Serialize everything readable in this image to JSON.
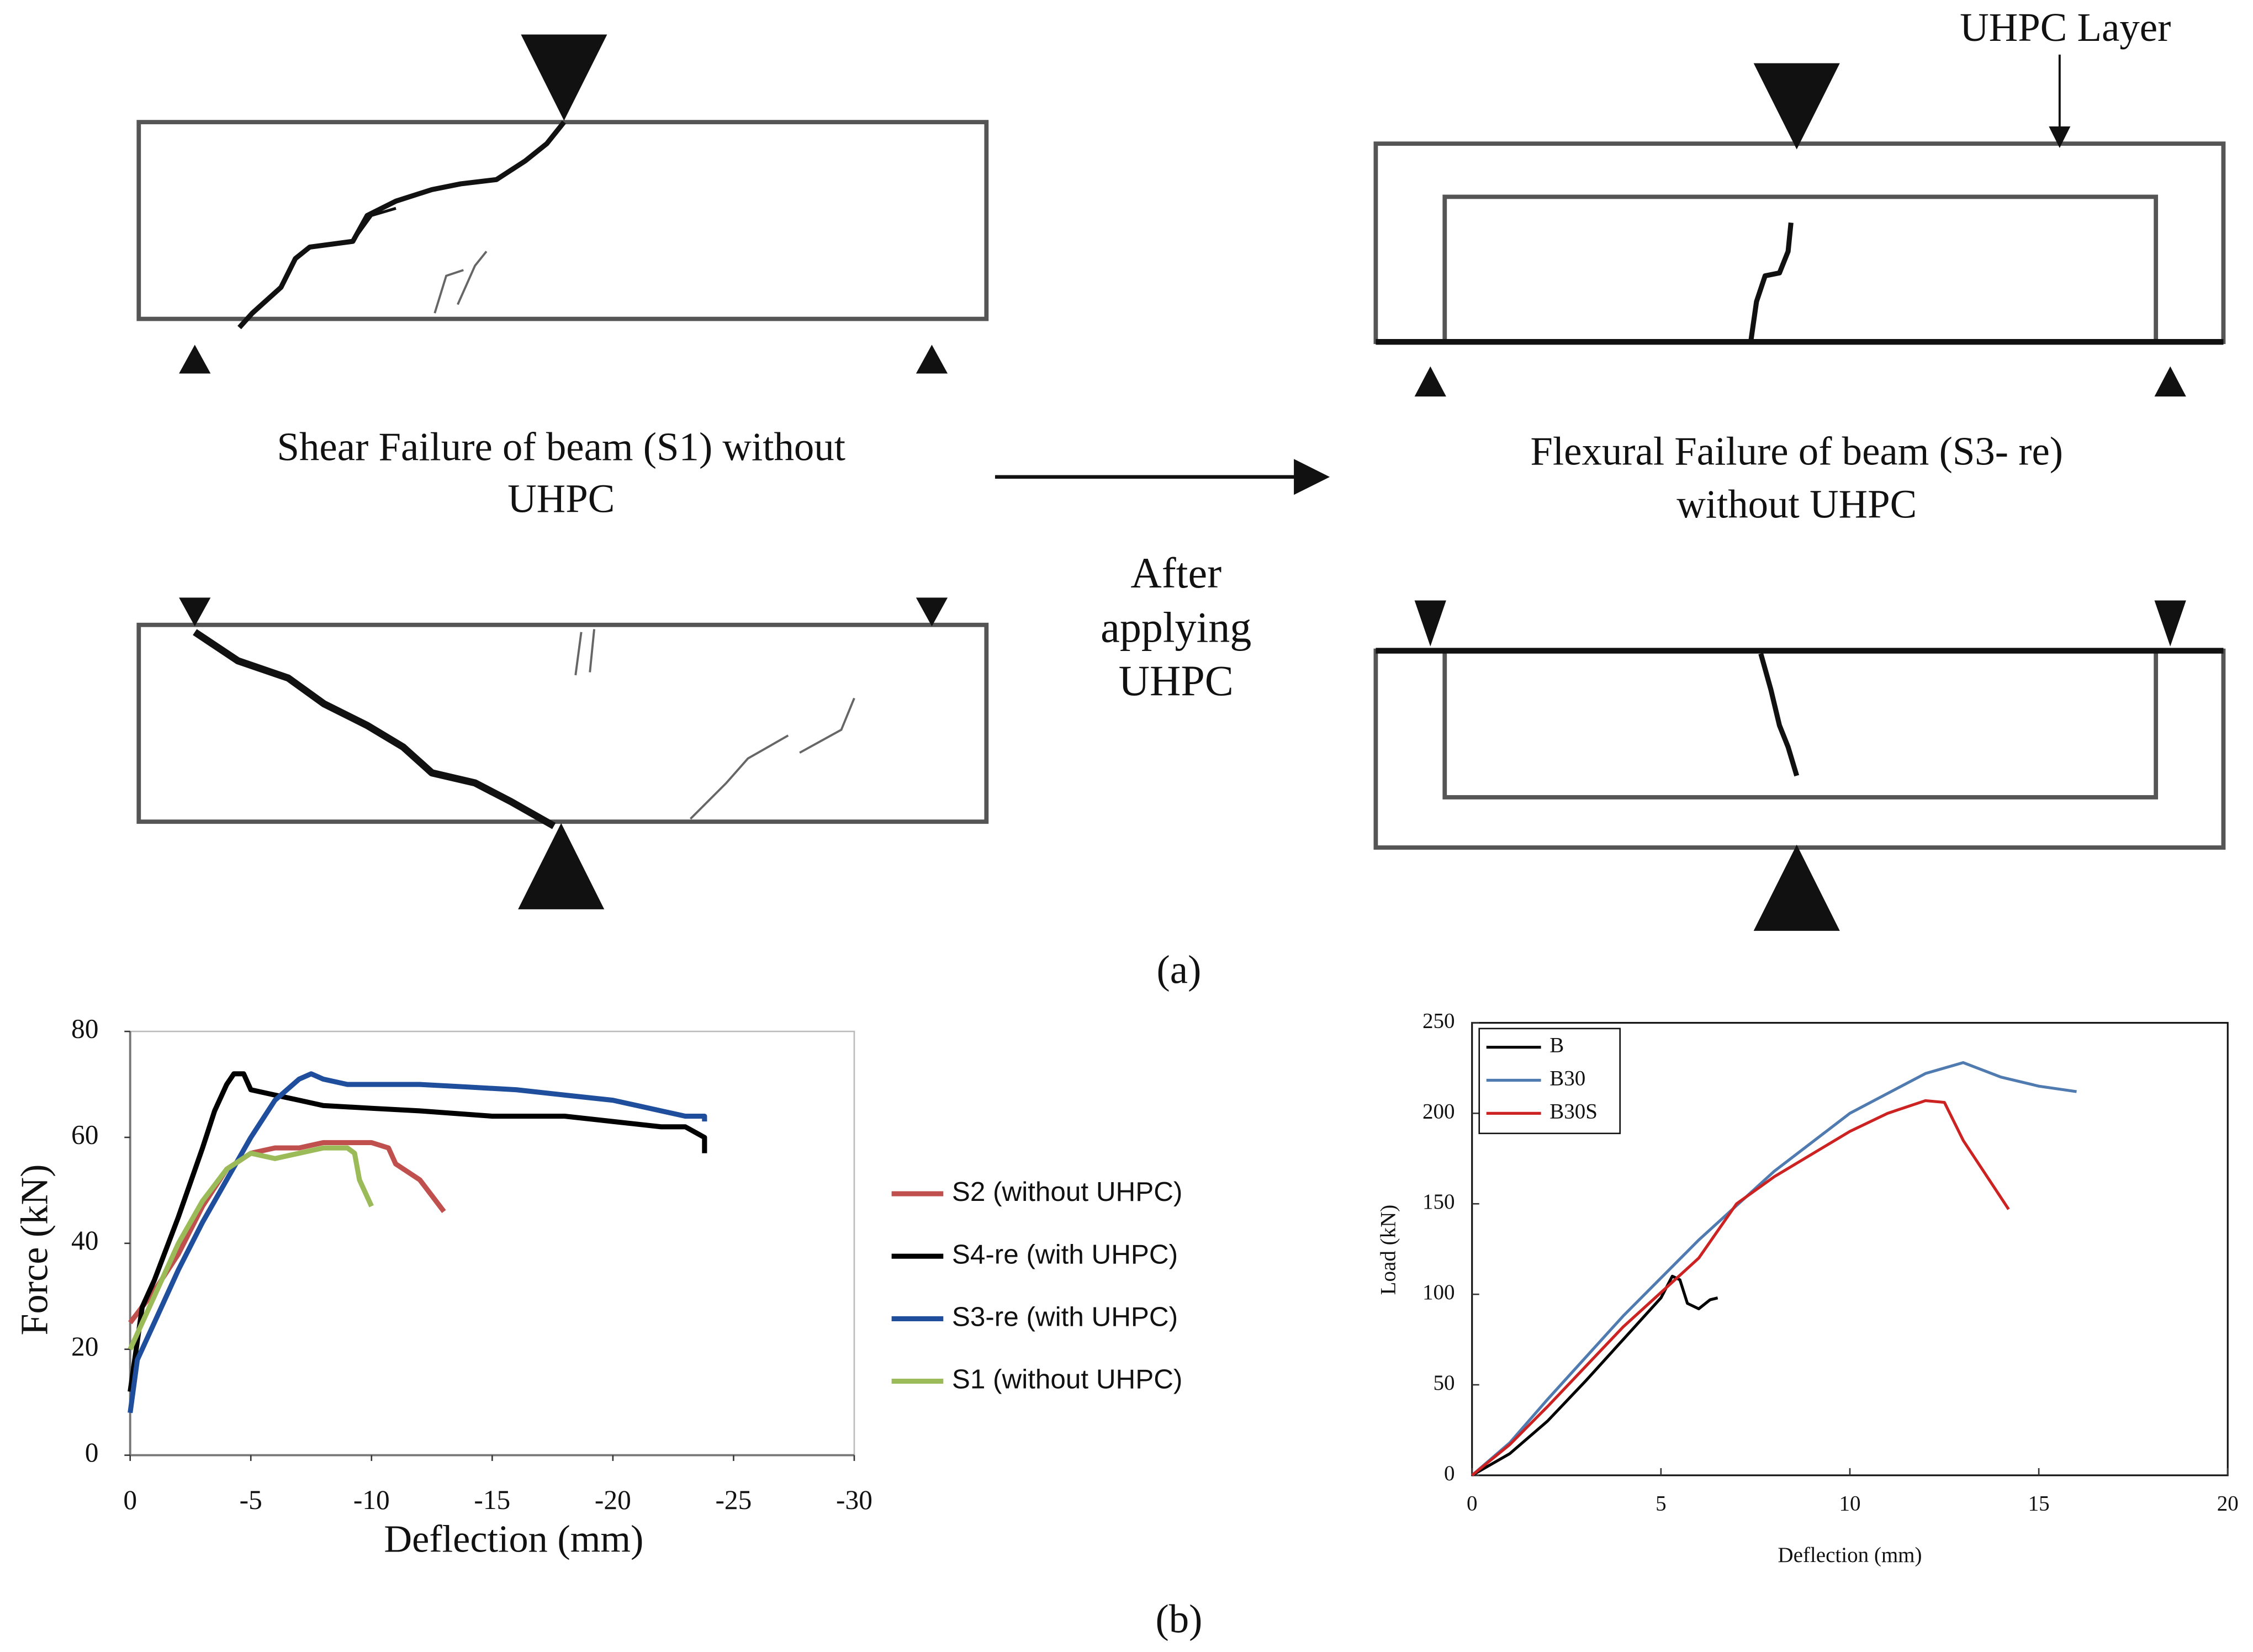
{
  "figure": {
    "uhpc_layer": "UHPC Layer",
    "shear_caption": [
      "Shear Failure of  beam (S1) without",
      "UHPC"
    ],
    "flexural_caption": [
      "Flexural Failure of  beam (S3- re)",
      "without UHPC"
    ],
    "arrow_caption": [
      "After",
      "applying",
      "UHPC"
    ],
    "panel_a": "(a)",
    "panel_b": "(b)"
  },
  "chart_data": [
    {
      "type": "line",
      "xlabel": "Deflection (mm)",
      "ylabel": "Force (kN)",
      "xlim": [
        0,
        -30
      ],
      "xticks": [
        0,
        -5,
        -10,
        -15,
        -20,
        -25,
        -30
      ],
      "ylim": [
        0,
        80
      ],
      "yticks": [
        0,
        20,
        40,
        60,
        80
      ],
      "legend": "right",
      "series": [
        {
          "name": "S2 (without UHPC)",
          "color": "#c0504d",
          "x": [
            0,
            -1,
            -2,
            -3,
            -4,
            -5,
            -6,
            -7,
            -8,
            -9,
            -10,
            -10.7,
            -11,
            -12,
            -12.5,
            -13
          ],
          "values": [
            25,
            31,
            38,
            47,
            54,
            57,
            58,
            58,
            59,
            59,
            59,
            58,
            55,
            52,
            49,
            46
          ]
        },
        {
          "name": "S4-re (with UHPC)",
          "color": "#000000",
          "x": [
            0,
            -0.5,
            -1,
            -2,
            -3,
            -3.5,
            -4,
            -4.3,
            -4.7,
            -5,
            -6,
            -7,
            -8,
            -10,
            -12,
            -15,
            -18,
            -20,
            -22,
            -23,
            -23.8,
            -23.8
          ],
          "values": [
            12,
            28,
            33,
            45,
            58,
            65,
            70,
            72,
            72,
            69,
            68,
            67,
            66,
            65.5,
            65,
            64,
            64,
            63,
            62,
            62,
            60,
            57
          ]
        },
        {
          "name": "S3-re (with UHPC)",
          "color": "#1f4e9c",
          "x": [
            0,
            -0.3,
            -1,
            -2,
            -3,
            -4,
            -5,
            -6,
            -7,
            -7.5,
            -8,
            -9,
            -10,
            -12,
            -14,
            -16,
            -18,
            -20,
            -22,
            -23,
            -23.8,
            -23.8
          ],
          "values": [
            8,
            18,
            25,
            35,
            44,
            52,
            60,
            67,
            71,
            72,
            71,
            70,
            70,
            70,
            69.5,
            69,
            68,
            67,
            65,
            64,
            64,
            63
          ]
        },
        {
          "name": "S1 (without UHPC)",
          "color": "#9bbb59",
          "x": [
            0,
            -1,
            -2,
            -3,
            -4,
            -5,
            -6,
            -7,
            -8,
            -9,
            -9.3,
            -9.5,
            -10
          ],
          "values": [
            20,
            30,
            40,
            48,
            54,
            57,
            56,
            57,
            58,
            58,
            57,
            52,
            47
          ]
        }
      ]
    },
    {
      "type": "line",
      "xlabel": "Deflection (mm)",
      "ylabel": "Load (kN)",
      "xlim": [
        0,
        20
      ],
      "xticks": [
        0,
        5,
        10,
        15,
        20
      ],
      "ylim": [
        0,
        250
      ],
      "yticks": [
        0,
        50,
        100,
        150,
        200,
        250
      ],
      "legend": "upper left",
      "series": [
        {
          "name": "B",
          "color": "#000000",
          "x": [
            0,
            1,
            2,
            3,
            4,
            5,
            5.3,
            5.5,
            5.7,
            6,
            6.3,
            6.5
          ],
          "values": [
            0,
            12,
            30,
            52,
            75,
            98,
            110,
            108,
            95,
            92,
            97,
            98
          ]
        },
        {
          "name": "B30",
          "color": "#4f7bb0",
          "x": [
            0,
            1,
            2,
            4,
            6,
            8,
            10,
            12,
            13,
            14,
            15,
            16
          ],
          "values": [
            0,
            18,
            42,
            88,
            130,
            168,
            200,
            222,
            228,
            220,
            215,
            212
          ]
        },
        {
          "name": "B30S",
          "color": "#cc2222",
          "x": [
            0,
            1,
            2,
            4,
            6,
            7,
            8,
            10,
            11,
            12,
            12.5,
            13,
            14.2
          ],
          "values": [
            0,
            17,
            38,
            82,
            120,
            150,
            165,
            190,
            200,
            207,
            206,
            185,
            147
          ]
        }
      ]
    }
  ]
}
